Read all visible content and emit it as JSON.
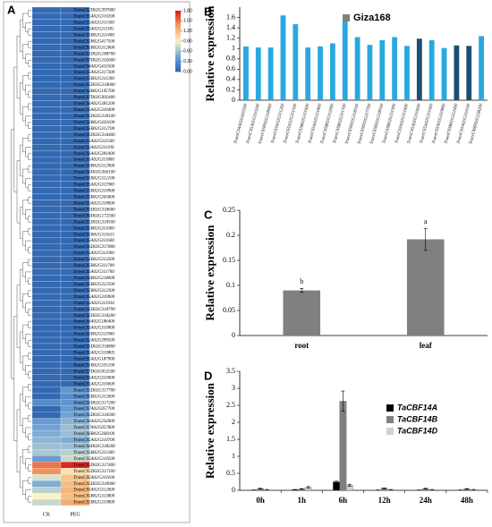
{
  "chart_data": [
    {
      "type": "heatmap",
      "panel": "A",
      "rows": [
        "TraesCS2D02G397000",
        "TraesCS5A02G310200",
        "TraesCS5A02G311300",
        "TraesCS5A02G311181",
        "TraesCS5B02G311400",
        "TraesCS2B02G417500",
        "TraesCS5B02G312800",
        "TraesCS1D02G188700",
        "TraesCS7D02G102600",
        "TraesCS4A02G433500",
        "TraesCS5A02G317300",
        "TraesCS5B02G311200",
        "TraesCS5D02G318000",
        "TraesCS3B02G195700",
        "TraesCS7D02G092400",
        "TraesCS6A02G381200",
        "TraesCS5A02G310400",
        "TraesCS5D02G318100",
        "TraesCS6B02G420100",
        "TraesCS5B02G312700",
        "TraesCS5D02G318400",
        "TraesCS5A02G311500",
        "TraesCS5A02G311100",
        "TraesCS6A02G381000",
        "TraesCS5A02G311800",
        "TraesCS5B02G312900",
        "TraesCS6D02G366100",
        "TraesCS5B02G312100",
        "TraesCS5A02G311900",
        "TraesCS5B02G310900",
        "TraesCS5B02G365800",
        "TraesCS5A02G318000",
        "TraesCS5D02G318600",
        "TraesCS6D02G172500",
        "TraesCS5D02G318500",
        "TraesCS5B02G311600",
        "TraesCS5B02G311615",
        "TraesCS5A02G311600",
        "TraesCS5D02G317800",
        "TraesCS5A02G311000",
        "TraesCS5B02G312200",
        "TraesCS5B02G311700",
        "TraesCS5A02G311700",
        "TraesCS6B02G218000",
        "TraesCS5B02G312500",
        "TraesCS5B02G312300",
        "TraesCS5A02G310900",
        "TraesCS5A02G311934",
        "TraesCS5D02G318799",
        "TraesCS5D02G318200",
        "TraesCS6A02G186400",
        "TraesCS5A02G310800",
        "TraesCS5B02G311900",
        "TraesCS2A02G399500",
        "TraesCS5D02G318800",
        "TraesCS5A02G310805",
        "TraesCS5A02G187900",
        "TraesCS1B02G335100",
        "TraesCS7D02G052500",
        "TraesCS5A02G310000",
        "TraesCS5A02G310600",
        "TraesCS5D02G317700",
        "TraesCS5B02G312000",
        "TraesCS5D02G317200",
        "TraesCS7A02G057700",
        "TraesCS5D02G318300",
        "TraesCS6A02G256900",
        "TraesCS7A02G057800",
        "TraesCS6B02G268100",
        "TraesCS5A02G310700",
        "TraesCS6D02G238200",
        "TraesCS5B02G311300",
        "TraesCS5A02G310500",
        "TraesCS5D02G317400",
        "TraesCS5D02G317100",
        "TraesCS5A02G310100",
        "TraesCS5D02G318900",
        "TraesCS5A02G312000",
        "TraesCS5B02G313800",
        "TraesCS5B02G310800"
      ],
      "columns": [
        "CK",
        "PEG"
      ],
      "values": [
        [
          0.05,
          0.05
        ],
        [
          0.05,
          0.05
        ],
        [
          0.05,
          0.05
        ],
        [
          0.05,
          0.05
        ],
        [
          0.05,
          0.05
        ],
        [
          0.05,
          0.05
        ],
        [
          0.05,
          0.05
        ],
        [
          0.05,
          0.05
        ],
        [
          0.05,
          0.05
        ],
        [
          0.05,
          0.05
        ],
        [
          0.05,
          0.05
        ],
        [
          0.05,
          0.05
        ],
        [
          0.05,
          0.05
        ],
        [
          0.05,
          0.05
        ],
        [
          0.05,
          0.05
        ],
        [
          0.05,
          0.05
        ],
        [
          0.05,
          0.05
        ],
        [
          0.05,
          0.05
        ],
        [
          0.05,
          0.05
        ],
        [
          0.05,
          0.05
        ],
        [
          0.05,
          0.05
        ],
        [
          0.05,
          0.05
        ],
        [
          0.05,
          0.05
        ],
        [
          0.05,
          0.05
        ],
        [
          0.05,
          0.05
        ],
        [
          0.05,
          0.05
        ],
        [
          0.05,
          0.05
        ],
        [
          0.05,
          0.05
        ],
        [
          0.05,
          0.05
        ],
        [
          0.05,
          0.05
        ],
        [
          0.05,
          0.05
        ],
        [
          0.05,
          0.05
        ],
        [
          0.05,
          0.05
        ],
        [
          0.05,
          0.05
        ],
        [
          0.05,
          0.05
        ],
        [
          0.05,
          0.05
        ],
        [
          0.05,
          0.05
        ],
        [
          0.05,
          0.05
        ],
        [
          0.05,
          0.05
        ],
        [
          0.05,
          0.05
        ],
        [
          0.05,
          0.05
        ],
        [
          0.05,
          0.05
        ],
        [
          0.05,
          0.05
        ],
        [
          0.05,
          0.05
        ],
        [
          0.05,
          0.05
        ],
        [
          0.05,
          0.05
        ],
        [
          0.05,
          0.05
        ],
        [
          0.05,
          0.05
        ],
        [
          0.05,
          0.05
        ],
        [
          0.05,
          0.05
        ],
        [
          0.05,
          0.05
        ],
        [
          0.05,
          0.05
        ],
        [
          0.05,
          0.05
        ],
        [
          0.05,
          0.05
        ],
        [
          0.05,
          0.05
        ],
        [
          0.05,
          0.05
        ],
        [
          0.05,
          0.05
        ],
        [
          0.05,
          0.05
        ],
        [
          0.05,
          0.05
        ],
        [
          0.05,
          0.05
        ],
        [
          0.05,
          0.05
        ],
        [
          0.05,
          0.35
        ],
        [
          0.05,
          0.3
        ],
        [
          0.3,
          0.35
        ],
        [
          0.05,
          0.4
        ],
        [
          0.05,
          0.45
        ],
        [
          0.4,
          0.55
        ],
        [
          0.45,
          0.6
        ],
        [
          0.5,
          0.6
        ],
        [
          0.55,
          0.5
        ],
        [
          0.6,
          0.6
        ],
        [
          0.65,
          0.7
        ],
        [
          0.4,
          0.75
        ],
        [
          1.5,
          1.75
        ],
        [
          1.4,
          1.0
        ],
        [
          0.8,
          1.15
        ],
        [
          0.5,
          1.2
        ],
        [
          0.7,
          1.25
        ],
        [
          0.9,
          1.2
        ],
        [
          0.75,
          1.3
        ]
      ],
      "colorbar_ticks": [
        {
          "value": 0,
          "label": "0.00"
        },
        {
          "value": 0.3,
          "label": "0.30"
        },
        {
          "value": 0.6,
          "label": "0.60"
        },
        {
          "value": 0.9,
          "label": "0.90"
        },
        {
          "value": 1.2,
          "label": "1.20"
        },
        {
          "value": 1.5,
          "label": "1.50"
        },
        {
          "value": 1.8,
          "label": "1.80"
        }
      ],
      "colors": [
        "#2c62ad",
        "#6fa3d6",
        "#f7f3c6",
        "#f4a262",
        "#d7191c"
      ]
    },
    {
      "type": "bar",
      "panel": "B",
      "ylabel": "Relative expression",
      "categories": [
        "TraesCS4A02G433500",
        "TraesCS5A02G310200",
        "TraesCS5D02G318000",
        "TraesCS5A02G311200",
        "TraesCS5A02G311500",
        "TraesCS5B02G311600",
        "TraesCS5A02G311800",
        "TraesCS5B02G312900",
        "TraesCS5B02G311700",
        "TraesCS5D02G318100",
        "TraesCS5D02G317700",
        "TraesCS5D02G318500",
        "TraesCS5B02G311900",
        "TraesCS5A02G311600",
        "TraesCS5A02G310600",
        "TraesCS5A02G311000",
        "TraesCS5A02G310800",
        "TraesCS5B02G312000",
        "TraesCS5A02G310100",
        "TraesCS6D02G238200"
      ],
      "series": [
        {
          "name": "Giza168",
          "color": "#808080",
          "values": [
            1.04,
            1.02,
            1.02,
            1.64,
            1.47,
            1.02,
            1.04,
            1.1,
            1.55,
            1.22,
            1.07,
            1.16,
            1.22,
            1.05,
            1.19,
            1.16,
            1.01,
            1.06,
            1.05,
            1.24
          ]
        }
      ],
      "bar_colors": [
        "#29a8e0",
        "#29a8e0",
        "#29a8e0",
        "#29a8e0",
        "#29a8e0",
        "#29a8e0",
        "#29a8e0",
        "#29a8e0",
        "#29a8e0",
        "#29a8e0",
        "#29a8e0",
        "#29a8e0",
        "#29a8e0",
        "#29a8e0",
        "#1b4f72",
        "#29a8e0",
        "#29a8e0",
        "#1b4f72",
        "#1b4f72",
        "#29a8e0"
      ],
      "ylim": [
        0,
        1.8
      ],
      "yticks": [
        0,
        0.2,
        0.4,
        0.6,
        0.8,
        1,
        1.2,
        1.4,
        1.6
      ]
    },
    {
      "type": "bar",
      "panel": "C",
      "ylabel": "Relative expression",
      "categories": [
        "root",
        "leaf"
      ],
      "series": [
        {
          "color": "#808080",
          "values": [
            0.09,
            0.192
          ],
          "errors": [
            0.004,
            0.022
          ]
        }
      ],
      "annotations": [
        "b",
        "a"
      ],
      "ylim": [
        0,
        0.25
      ],
      "yticks": [
        0,
        0.05,
        0.1,
        0.15,
        0.2,
        0.25
      ]
    },
    {
      "type": "bar",
      "panel": "D",
      "ylabel": "Relative expression",
      "categories": [
        "0h",
        "1h",
        "6h",
        "12h",
        "24h",
        "48h"
      ],
      "series": [
        {
          "name": "TaCBF14A",
          "color": "#000000",
          "values": [
            0.01,
            0.02,
            0.25,
            0.01,
            0.01,
            0.01
          ],
          "errors": [
            0.002,
            0.005,
            0.02,
            0.002,
            0.002,
            0.002
          ]
        },
        {
          "name": "TaCBF14B",
          "color": "#808080",
          "values": [
            0.05,
            0.04,
            2.62,
            0.06,
            0.05,
            0.04
          ],
          "errors": [
            0.01,
            0.01,
            0.3,
            0.01,
            0.01,
            0.01
          ]
        },
        {
          "name": "TaCBF14D",
          "color": "#d0d0d0",
          "values": [
            0.02,
            0.09,
            0.15,
            0.02,
            0.02,
            0.02
          ],
          "errors": [
            0.005,
            0.02,
            0.03,
            0.005,
            0.005,
            0.005
          ]
        }
      ],
      "ylim": [
        0,
        3.5
      ],
      "yticks": [
        0,
        0.5,
        1,
        1.5,
        2,
        2.5,
        3,
        3.5
      ]
    }
  ]
}
